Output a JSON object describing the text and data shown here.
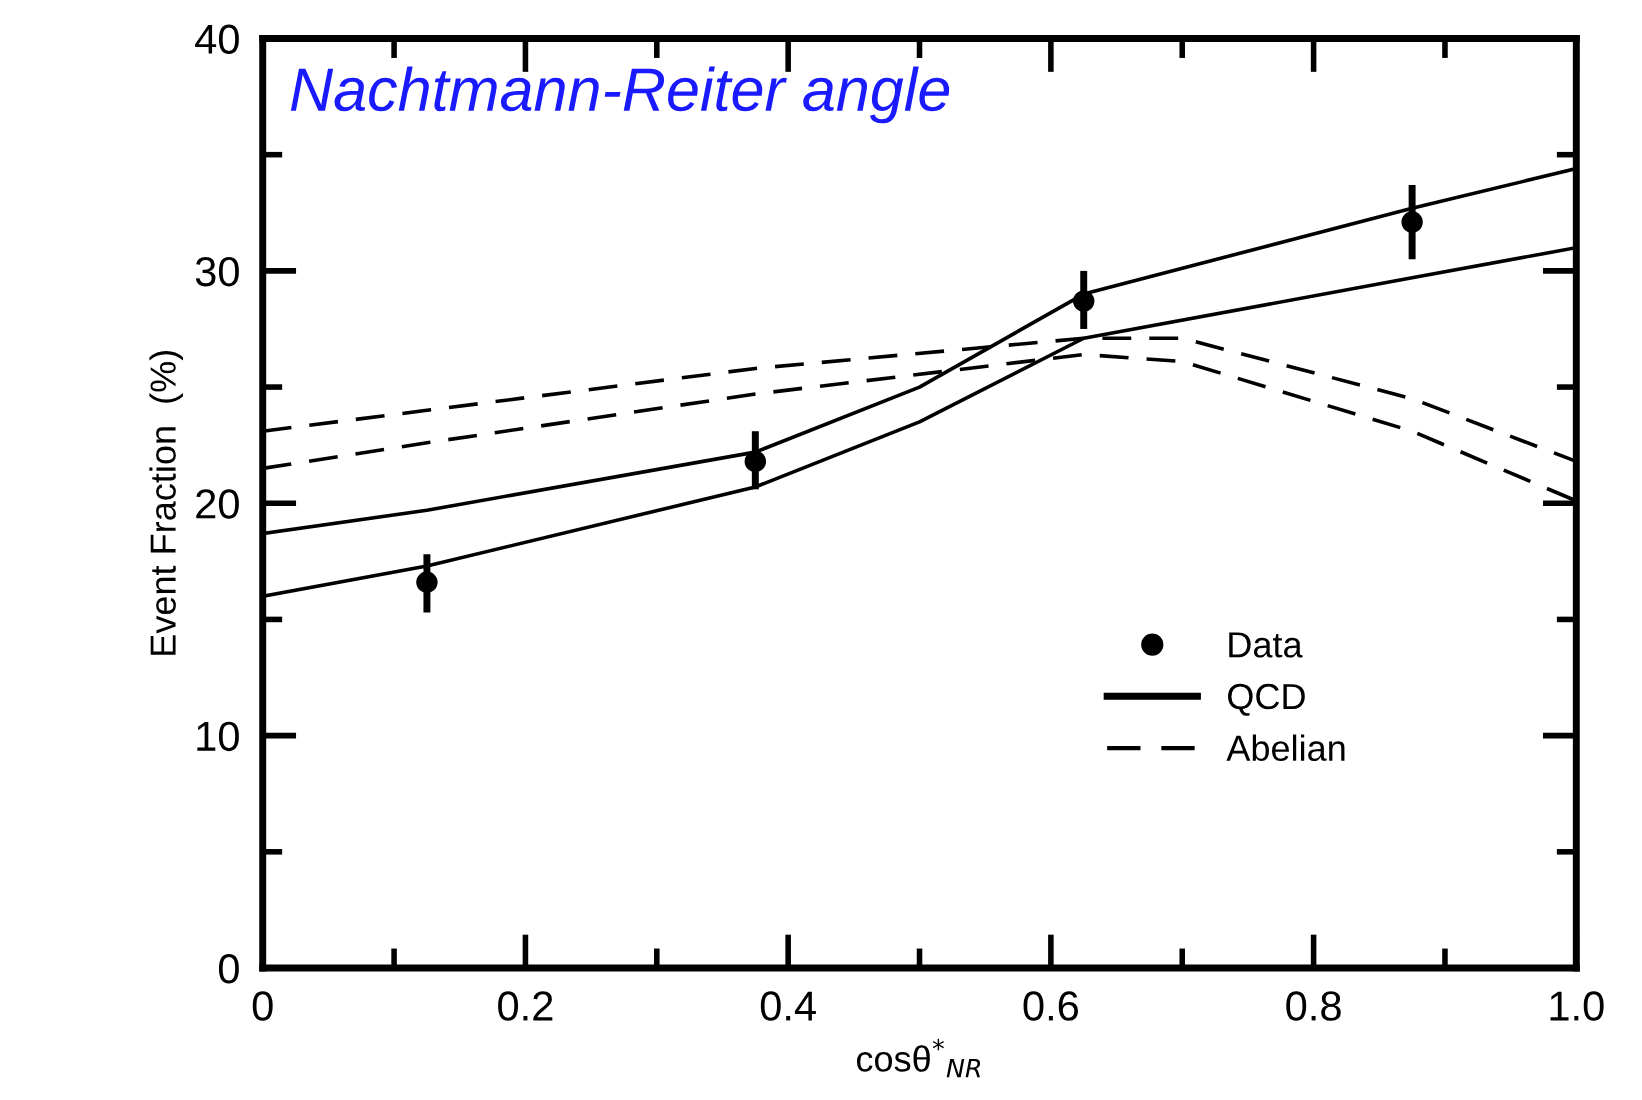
{
  "chart_data": {
    "type": "line",
    "title": "Nachtmann-Reiter angle",
    "xlabel": "cosθ$^{*}$$_{NR}$",
    "ylabel": "Event Fraction  (%)",
    "xlim": [
      0,
      1.0
    ],
    "ylim": [
      0,
      40
    ],
    "xticks": [
      0,
      0.2,
      0.4,
      0.6,
      0.8,
      {
        "value": 1.0,
        "label": "1.0"
      }
    ],
    "yticks": [
      0,
      10,
      20,
      30,
      40
    ],
    "grid": false,
    "legend": "bottom right",
    "series": [
      {
        "name": "Data",
        "type": "scatter",
        "marker": "circle",
        "color": "#000000",
        "x": [
          0.125,
          0.375,
          0.625,
          0.875
        ],
        "values": [
          16.6,
          21.8,
          28.7,
          32.1
        ],
        "errors": [
          [
            15.3,
            17.8
          ],
          [
            20.6,
            23.1
          ],
          [
            27.5,
            30.0
          ],
          [
            30.5,
            33.7
          ]
        ]
      },
      {
        "name": "QCD",
        "line_style": "solid",
        "color": "#000000",
        "x": [
          0,
          0.125,
          0.375,
          0.5,
          0.625,
          0.875,
          1.0
        ],
        "values": [
          18.7,
          19.7,
          22.2,
          25.0,
          29.0,
          32.7,
          34.4
        ]
      },
      {
        "line_style": "solid",
        "color": "#000000",
        "x": [
          0,
          0.125,
          0.375,
          0.5,
          0.625,
          0.875,
          1.0
        ],
        "values": [
          16.0,
          17.3,
          20.7,
          23.5,
          27.1,
          29.7,
          31.0
        ]
      },
      {
        "name": "Abelian",
        "line_style": "dashed",
        "color": "#000000",
        "x": [
          0,
          0.125,
          0.375,
          0.625,
          0.7,
          0.875,
          1.0
        ],
        "values": [
          23.1,
          24.0,
          25.8,
          27.1,
          27.1,
          24.5,
          21.8
        ]
      },
      {
        "line_style": "dashed",
        "color": "#000000",
        "x": [
          0,
          0.125,
          0.375,
          0.625,
          0.7,
          0.875,
          1.0
        ],
        "values": [
          21.5,
          22.6,
          24.7,
          26.4,
          26.1,
          23.1,
          20.1
        ]
      }
    ]
  }
}
